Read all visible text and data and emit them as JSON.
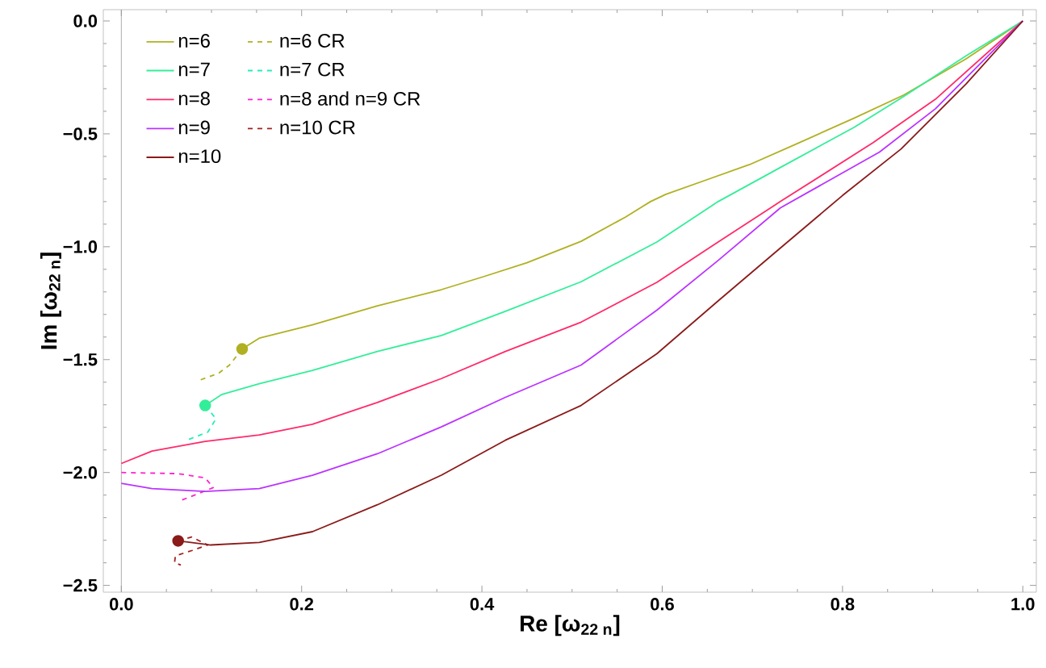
{
  "chart_data": {
    "type": "line",
    "xlabel": "Re [ω$_{22 n}$]",
    "ylabel": "Im [ω$_{22 n}$]",
    "xlim": [
      -0.02,
      1.015
    ],
    "ylim": [
      -2.53,
      0.05
    ],
    "xticks": [
      {
        "value": 0,
        "label": "0.0"
      },
      0.2,
      0.4,
      0.6,
      0.8,
      {
        "value": 1,
        "label": "1.0"
      }
    ],
    "yticks": [
      {
        "value": 0,
        "label": "0.0"
      },
      {
        "value": -0.5,
        "label": "−0.5"
      },
      {
        "value": -1,
        "label": "−1.0"
      },
      {
        "value": -1.5,
        "label": "−1.5"
      },
      {
        "value": -2,
        "label": "−2.0"
      },
      {
        "value": -2.5,
        "label": "−2.5"
      }
    ],
    "tick_labels": true,
    "legend": "top left",
    "ref_lines": [
      {
        "axis": "x",
        "value": 0,
        "color": "#999999"
      }
    ],
    "series": [
      {
        "name": "n=6",
        "color": "#b0b022",
        "line_style": "solid",
        "x": [
          0.134,
          0.153,
          0.212,
          0.284,
          0.355,
          0.403,
          0.45,
          0.51,
          0.559,
          0.587,
          0.604,
          0.649,
          0.697,
          0.752,
          0.813,
          0.868,
          0.937,
          1.0
        ],
        "values": [
          -1.453,
          -1.405,
          -1.346,
          -1.262,
          -1.19,
          -1.131,
          -1.071,
          -0.976,
          -0.869,
          -0.8,
          -0.768,
          -0.704,
          -0.636,
          -0.539,
          -0.43,
          -0.328,
          -0.168,
          0.0
        ]
      },
      {
        "name": "n=7",
        "color": "#33ee99",
        "line_style": "solid",
        "x": [
          0.093,
          0.111,
          0.153,
          0.212,
          0.284,
          0.355,
          0.426,
          0.51,
          0.594,
          0.662,
          0.731,
          0.813,
          0.868,
          0.937,
          1.0
        ],
        "values": [
          -1.703,
          -1.655,
          -1.607,
          -1.548,
          -1.464,
          -1.393,
          -1.286,
          -1.155,
          -0.979,
          -0.8,
          -0.649,
          -0.471,
          -0.334,
          -0.155,
          0.0
        ]
      },
      {
        "name": "n=8",
        "color": "#ff2a6a",
        "line_style": "solid",
        "x": [
          0.0,
          0.034,
          0.093,
          0.153,
          0.212,
          0.284,
          0.355,
          0.426,
          0.51,
          0.594,
          0.662,
          0.731,
          0.834,
          0.903,
          1.0
        ],
        "values": [
          -1.96,
          -1.905,
          -1.862,
          -1.834,
          -1.786,
          -1.69,
          -1.584,
          -1.464,
          -1.334,
          -1.158,
          -0.979,
          -0.8,
          -0.539,
          -0.347,
          0.0
        ]
      },
      {
        "name": "n=9",
        "color": "#bb33ff",
        "line_style": "solid",
        "x": [
          0.0,
          0.034,
          0.093,
          0.153,
          0.212,
          0.284,
          0.355,
          0.426,
          0.51,
          0.594,
          0.662,
          0.731,
          0.841,
          0.903,
          1.0
        ],
        "values": [
          -2.048,
          -2.071,
          -2.084,
          -2.071,
          -2.012,
          -1.917,
          -1.798,
          -1.667,
          -1.524,
          -1.281,
          -1.061,
          -0.828,
          -0.581,
          -0.389,
          0.0
        ]
      },
      {
        "name": "n=10",
        "color": "#8b1a1a",
        "line_style": "solid",
        "x": [
          0.063,
          0.099,
          0.153,
          0.212,
          0.284,
          0.355,
          0.426,
          0.51,
          0.594,
          0.662,
          0.731,
          0.8,
          0.865,
          0.937,
          1.0
        ],
        "values": [
          -2.303,
          -2.321,
          -2.31,
          -2.262,
          -2.143,
          -2.012,
          -1.857,
          -1.703,
          -1.474,
          -1.24,
          -1.006,
          -0.773,
          -0.567,
          -0.279,
          0.0
        ]
      },
      {
        "name": "n=6 CR",
        "color": "#b0b022",
        "line_style": "dashed",
        "x": [
          0.134,
          0.12,
          0.108,
          0.087
        ],
        "values": [
          -1.453,
          -1.524,
          -1.56,
          -1.591
        ]
      },
      {
        "name": "n=7 CR",
        "color": "#22eebb",
        "line_style": "dashed",
        "x": [
          0.093,
          0.105,
          0.096,
          0.075
        ],
        "values": [
          -1.703,
          -1.762,
          -1.821,
          -1.853
        ]
      },
      {
        "name": "n=8 and n=9 CR",
        "color": "#ff22cc",
        "line_style": "dashed",
        "x": [
          0.0,
          0.063,
          0.093,
          0.102,
          0.087,
          0.066
        ],
        "values": [
          -2.0,
          -2.005,
          -2.024,
          -2.067,
          -2.091,
          -2.124
        ]
      },
      {
        "name": "n=10 CR",
        "color": "#a02020",
        "line_style": "dashed",
        "x": [
          0.063,
          0.078,
          0.096,
          0.078,
          0.06,
          0.059,
          0.066
        ],
        "values": [
          -2.303,
          -2.286,
          -2.321,
          -2.346,
          -2.369,
          -2.4,
          -2.41
        ]
      },
      {
        "type": "scatter",
        "marker": "circle",
        "color": "#b0b022",
        "x": [
          0.134
        ],
        "values": [
          -1.453
        ]
      },
      {
        "type": "scatter",
        "marker": "circle",
        "color": "#33ee99",
        "x": [
          0.093
        ],
        "values": [
          -1.703
        ]
      },
      {
        "type": "scatter",
        "marker": "circle",
        "color": "#8b1a1a",
        "x": [
          0.063
        ],
        "values": [
          -2.303
        ]
      }
    ]
  }
}
